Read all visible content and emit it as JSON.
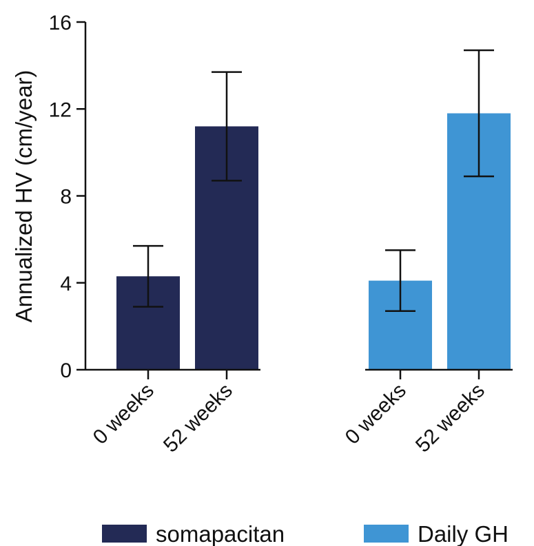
{
  "chart_data": {
    "type": "bar",
    "ylabel": "Annualized HV (cm/year)",
    "ylim": [
      0,
      16
    ],
    "yticks": [
      0,
      4,
      8,
      12,
      16
    ],
    "grid": false,
    "legend_position": "bottom",
    "groups": [
      {
        "name": "somapacitan",
        "color": "#232a55",
        "bars": [
          {
            "category": "0 weeks",
            "value": 4.3,
            "err_low": 2.9,
            "err_high": 5.7
          },
          {
            "category": "52 weeks",
            "value": 11.2,
            "err_low": 8.7,
            "err_high": 13.7
          }
        ]
      },
      {
        "name": "Daily GH",
        "color": "#3f95d4",
        "bars": [
          {
            "category": "0 weeks",
            "value": 4.1,
            "err_low": 2.7,
            "err_high": 5.5
          },
          {
            "category": "52 weeks",
            "value": 11.8,
            "err_low": 8.9,
            "err_high": 14.7
          }
        ]
      }
    ]
  }
}
